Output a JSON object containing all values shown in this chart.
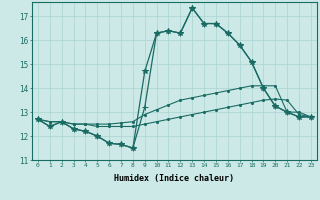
{
  "xlabel": "Humidex (Indice chaleur)",
  "ylabel": "",
  "bg_color": "#cce9e7",
  "grid_color": "#aad4d1",
  "line_color": "#1a6b63",
  "xlim": [
    -0.5,
    23.5
  ],
  "ylim": [
    11,
    17.6
  ],
  "yticks": [
    11,
    12,
    13,
    14,
    15,
    16,
    17
  ],
  "xticks": [
    0,
    1,
    2,
    3,
    4,
    5,
    6,
    7,
    8,
    9,
    10,
    11,
    12,
    13,
    14,
    15,
    16,
    17,
    18,
    19,
    20,
    21,
    22,
    23
  ],
  "lines": [
    {
      "y": [
        12.7,
        12.4,
        12.6,
        12.3,
        12.2,
        12.0,
        11.7,
        11.65,
        11.5,
        14.7,
        16.3,
        16.4,
        16.3,
        17.35,
        16.7,
        16.7,
        16.3,
        15.8,
        15.1,
        14.0,
        13.25,
        13.0,
        12.8,
        12.8
      ],
      "marker": "*",
      "ms": 4,
      "lw": 0.9
    },
    {
      "y": [
        12.7,
        12.4,
        12.6,
        12.3,
        12.2,
        12.0,
        11.7,
        11.65,
        11.5,
        13.2,
        16.3,
        16.4,
        16.3,
        17.35,
        16.7,
        16.7,
        16.3,
        15.8,
        15.1,
        14.0,
        13.25,
        13.0,
        12.8,
        12.8
      ],
      "marker": "+",
      "ms": 5,
      "lw": 0.9
    },
    {
      "y": [
        12.7,
        12.6,
        12.6,
        12.5,
        12.5,
        12.5,
        12.5,
        12.55,
        12.6,
        12.9,
        13.1,
        13.3,
        13.5,
        13.6,
        13.7,
        13.8,
        13.9,
        14.0,
        14.1,
        14.1,
        14.1,
        13.0,
        13.0,
        12.8
      ],
      "marker": ".",
      "ms": 3,
      "lw": 0.8
    },
    {
      "y": [
        12.7,
        12.6,
        12.6,
        12.5,
        12.5,
        12.4,
        12.4,
        12.4,
        12.4,
        12.5,
        12.6,
        12.7,
        12.8,
        12.9,
        13.0,
        13.1,
        13.2,
        13.3,
        13.4,
        13.5,
        13.55,
        13.5,
        12.9,
        12.8
      ],
      "marker": ".",
      "ms": 3,
      "lw": 0.8
    }
  ]
}
